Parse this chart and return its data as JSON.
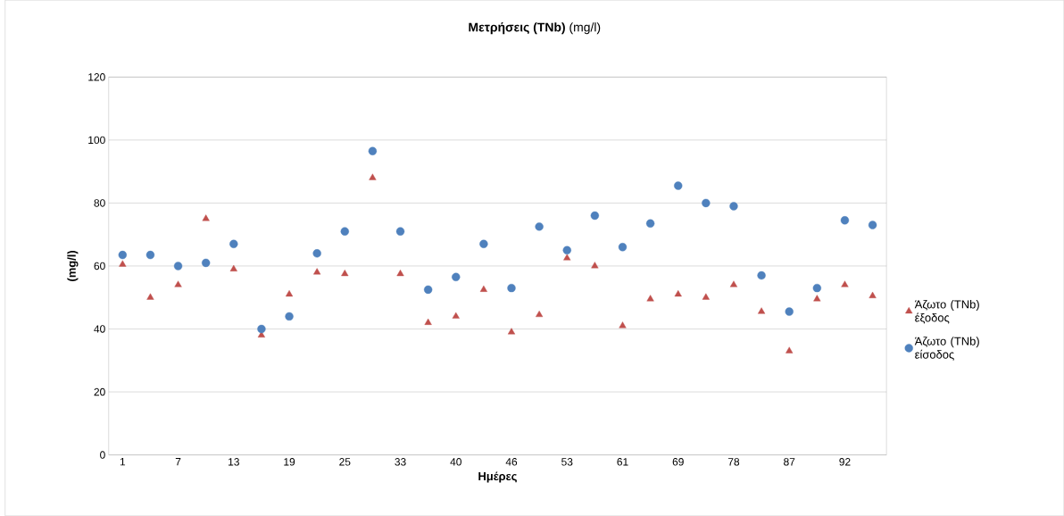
{
  "chart_data": {
    "type": "scatter",
    "title": "**Μετρήσεις  (TNb)** (mg/l)",
    "xlabel": "Ημέρες",
    "ylabel": "(mg/l)",
    "categories": [
      "1",
      null,
      "7",
      null,
      "13",
      null,
      "19",
      null,
      "25",
      null,
      "33",
      null,
      "40",
      null,
      "46",
      null,
      "53",
      null,
      "61",
      null,
      "69",
      null,
      "78",
      null,
      "87",
      null,
      "92",
      null
    ],
    "series": [
      {
        "name": "Άζωτο (TNb) έξοδος",
        "color": "#c0504d",
        "marker": "triangle",
        "values": [
          60.5,
          50,
          54,
          75,
          59,
          38,
          51,
          58,
          57.5,
          88,
          57.5,
          42,
          44,
          52.5,
          39,
          44.5,
          62.5,
          60,
          41,
          49.5,
          51,
          50,
          54,
          45.5,
          33,
          49.5,
          54,
          50.5
        ]
      },
      {
        "name": "Άζωτο (TNb) είσοδος",
        "color": "#4f81bd",
        "marker": "circle",
        "values": [
          63.5,
          63.5,
          60,
          61,
          67,
          40,
          44,
          64,
          71,
          96.5,
          71,
          52.5,
          56.5,
          67,
          53,
          72.5,
          65,
          76,
          66,
          73.5,
          85.5,
          80,
          79,
          57,
          45.5,
          53,
          74.5,
          73
        ]
      }
    ],
    "ylim": [
      0,
      120
    ],
    "yticks": [
      0,
      20,
      40,
      60,
      80,
      100,
      120
    ],
    "grid": "y",
    "legend": "right"
  }
}
